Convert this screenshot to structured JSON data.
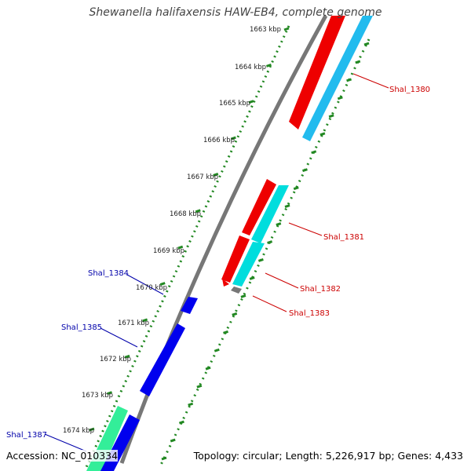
{
  "title": "Shewanella halifaxensis HAW-EB4, complete genome",
  "accession": "Accession: NC_010334",
  "summary": "Topology: circular; Length: 5,226,917 bp; Genes: 4,433",
  "kbp_ticks": [
    "1663 kbp",
    "1664 kbp",
    "1665 kbp",
    "1666 kbp",
    "1667 kbp",
    "1668 kbp",
    "1669 kbp",
    "1670 kbp",
    "1671 kbp",
    "1672 kbp",
    "1673 kbp",
    "1674 kbp"
  ],
  "genes_right": [
    {
      "name": "Shal_1380",
      "color": "#cc0000"
    },
    {
      "name": "Shal_1381",
      "color": "#cc0000"
    },
    {
      "name": "Shal_1382",
      "color": "#cc0000"
    },
    {
      "name": "Shal_1383",
      "color": "#cc0000"
    }
  ],
  "genes_left": [
    {
      "name": "Shal_1384",
      "color": "#0000aa"
    },
    {
      "name": "Shal_1385",
      "color": "#0000aa"
    },
    {
      "name": "Shal_1387",
      "color": "#0000aa"
    }
  ],
  "colors": {
    "red": "#ee0000",
    "cyan": "#00dddd",
    "light_blue": "#22bbee",
    "blue": "#0000ee",
    "green": "#33ee99",
    "backbone": "#777777",
    "tick_dots": "#228822"
  }
}
